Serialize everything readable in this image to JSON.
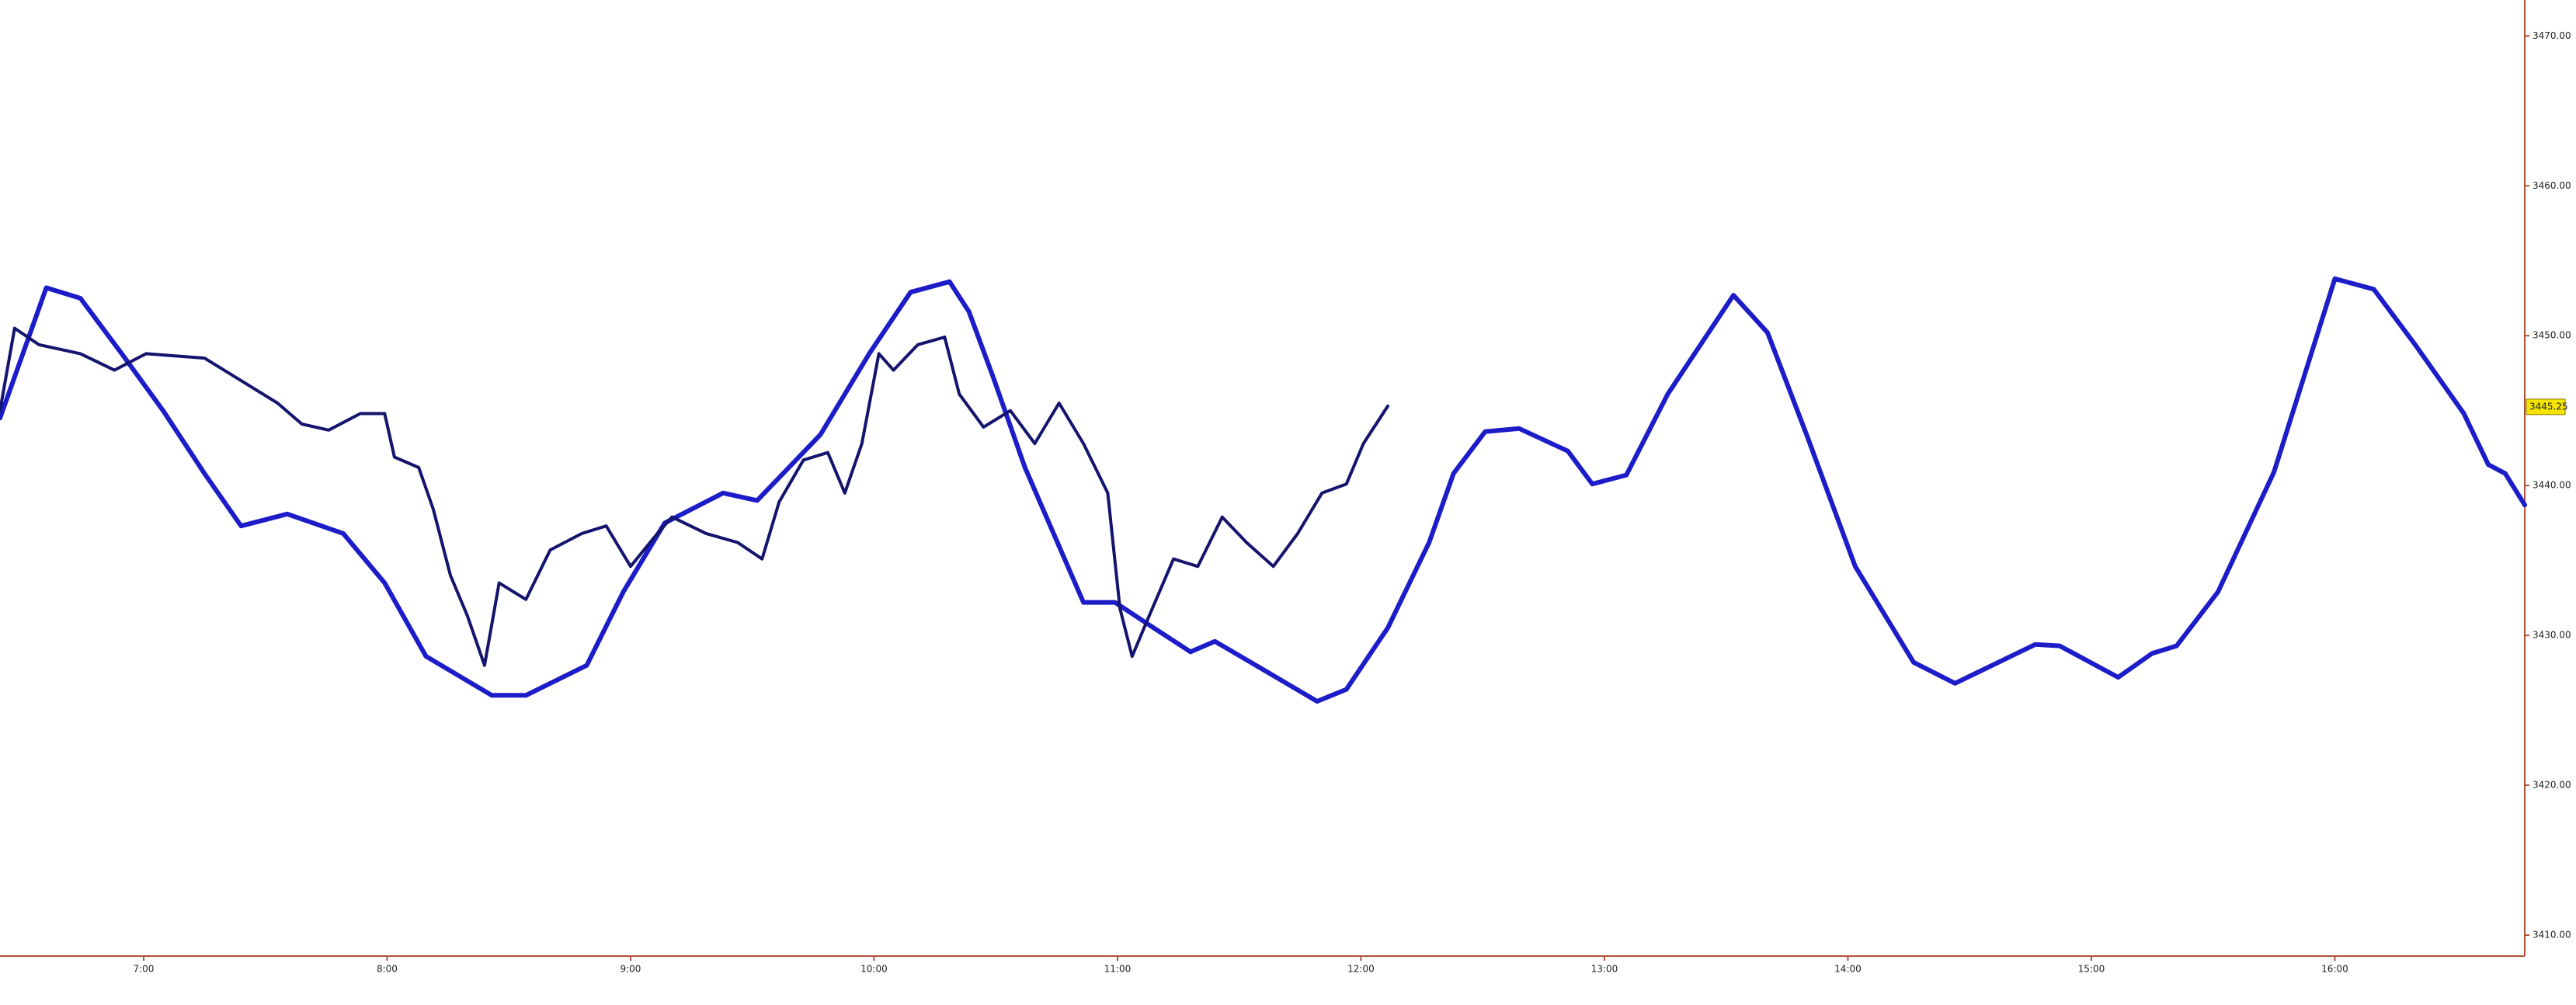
{
  "chart_data": {
    "type": "line",
    "xlim": [
      6.41,
      16.78
    ],
    "ylim": [
      3408.6,
      3472.4
    ],
    "xticks": [
      {
        "value": 7,
        "label": "7:00"
      },
      {
        "value": 8,
        "label": "8:00"
      },
      {
        "value": 9,
        "label": "9:00"
      },
      {
        "value": 10,
        "label": "10:00"
      },
      {
        "value": 11,
        "label": "11:00"
      },
      {
        "value": 12,
        "label": "12:00"
      },
      {
        "value": 13,
        "label": "13:00"
      },
      {
        "value": 14,
        "label": "14:00"
      },
      {
        "value": 15,
        "label": "15:00"
      },
      {
        "value": 16,
        "label": "16:00"
      }
    ],
    "yticks": [
      {
        "value": 3410,
        "label": "3410.00"
      },
      {
        "value": 3420,
        "label": "3420.00"
      },
      {
        "value": 3430,
        "label": "3430.00"
      },
      {
        "value": 3440,
        "label": "3440.00"
      },
      {
        "value": 3450,
        "label": "3450.00"
      },
      {
        "value": 3460,
        "label": "3460.00"
      },
      {
        "value": 3470,
        "label": "3470.00"
      }
    ],
    "last_price": 3445.25,
    "series": [
      {
        "color": "#1c1cc8",
        "width": 6,
        "x": [
          6.41,
          6.6,
          6.74,
          6.91,
          7.08,
          7.25,
          7.4,
          7.59,
          7.82,
          7.99,
          8.16,
          8.43,
          8.57,
          8.82,
          8.97,
          9.14,
          9.38,
          9.52,
          9.78,
          9.98,
          10.15,
          10.31,
          10.39,
          10.49,
          10.62,
          10.86,
          10.99,
          11.13,
          11.3,
          11.4,
          11.6,
          11.82,
          11.94,
          12.11,
          12.28,
          12.38,
          12.51,
          12.65,
          12.85,
          12.95,
          13.09,
          13.26,
          13.53,
          13.67,
          13.83,
          14.03,
          14.27,
          14.44,
          14.77,
          14.87,
          15.11,
          15.25,
          15.35,
          15.52,
          15.75,
          16.0,
          16.16,
          16.33,
          16.53,
          16.63,
          16.7,
          16.78
        ],
        "values": [
          3444.5,
          3453.2,
          3452.5,
          3448.8,
          3445.0,
          3440.8,
          3437.3,
          3438.1,
          3436.8,
          3433.5,
          3428.6,
          3426.0,
          3426.0,
          3428.0,
          3432.9,
          3437.5,
          3439.5,
          3439.0,
          3443.4,
          3448.8,
          3452.9,
          3453.6,
          3451.6,
          3447.2,
          3441.2,
          3432.2,
          3432.2,
          3430.7,
          3428.9,
          3429.6,
          3427.7,
          3425.6,
          3426.4,
          3430.5,
          3436.2,
          3440.8,
          3443.6,
          3443.8,
          3442.3,
          3440.1,
          3440.7,
          3446.1,
          3452.7,
          3450.2,
          3443.4,
          3434.6,
          3428.2,
          3426.8,
          3429.4,
          3429.3,
          3427.2,
          3428.8,
          3429.3,
          3432.9,
          3440.9,
          3453.8,
          3453.1,
          3449.4,
          3444.8,
          3441.4,
          3440.8,
          3438.7
        ]
      },
      {
        "color": "#14146e",
        "width": 4,
        "x": [
          6.41,
          6.47,
          6.57,
          6.74,
          6.88,
          7.01,
          7.25,
          7.38,
          7.55,
          7.65,
          7.76,
          7.89,
          7.99,
          8.03,
          8.13,
          8.19,
          8.26,
          8.33,
          8.4,
          8.46,
          8.57,
          8.67,
          8.8,
          8.9,
          9.0,
          9.11,
          9.17,
          9.31,
          9.44,
          9.54,
          9.61,
          9.71,
          9.81,
          9.88,
          9.95,
          10.02,
          10.08,
          10.18,
          10.29,
          10.35,
          10.45,
          10.56,
          10.66,
          10.76,
          10.86,
          10.96,
          11.01,
          11.06,
          11.13,
          11.23,
          11.33,
          11.43,
          11.53,
          11.64,
          11.74,
          11.84,
          11.94,
          12.01,
          12.11
        ],
        "values": [
          3445.0,
          3450.5,
          3449.4,
          3448.8,
          3447.7,
          3448.8,
          3448.5,
          3447.2,
          3445.5,
          3444.1,
          3443.7,
          3444.8,
          3444.8,
          3441.9,
          3441.2,
          3438.4,
          3434.0,
          3431.3,
          3428.0,
          3433.5,
          3432.4,
          3435.7,
          3436.8,
          3437.3,
          3434.6,
          3436.8,
          3437.9,
          3436.8,
          3436.2,
          3435.1,
          3438.9,
          3441.7,
          3442.2,
          3439.5,
          3442.8,
          3448.8,
          3447.7,
          3449.4,
          3449.9,
          3446.1,
          3443.9,
          3445.0,
          3442.8,
          3445.5,
          3442.8,
          3439.5,
          3431.8,
          3428.6,
          3431.3,
          3435.1,
          3434.6,
          3437.9,
          3436.2,
          3434.6,
          3436.8,
          3439.5,
          3440.1,
          3442.8,
          3445.3
        ]
      }
    ]
  }
}
